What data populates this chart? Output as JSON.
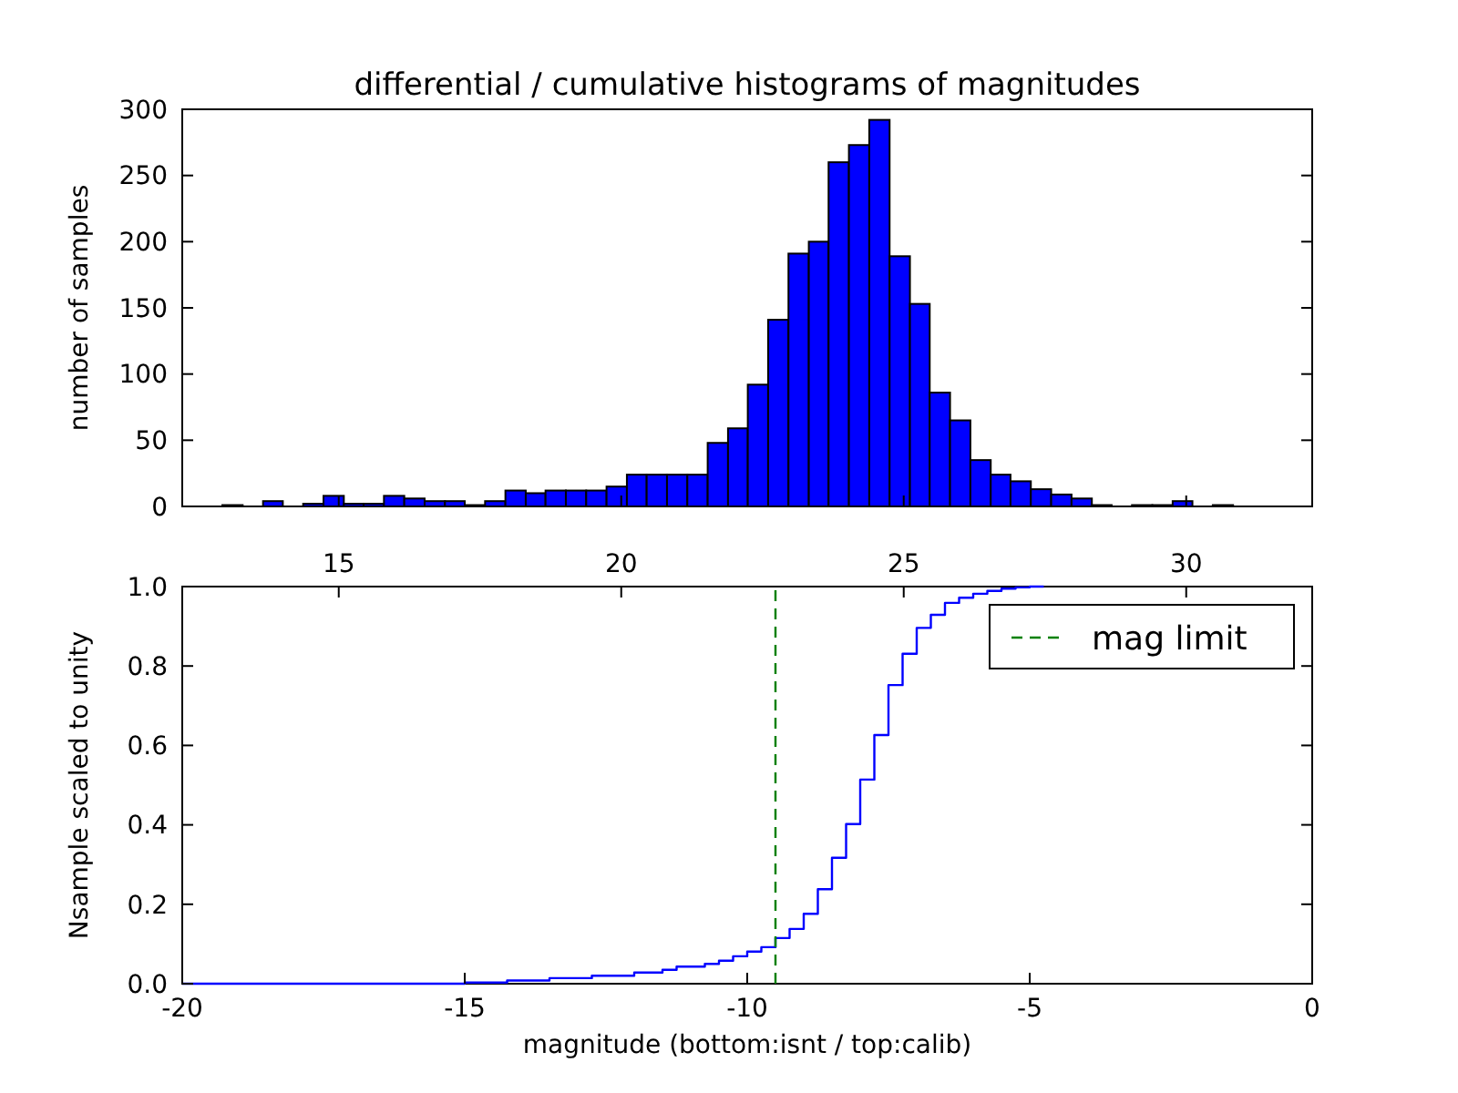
{
  "chart_data": [
    {
      "type": "histogram",
      "title": "differential / cumulative histograms of magnitudes",
      "ylabel": "number of samples",
      "color": "#0000ff",
      "bins": [
        12.94,
        13.3,
        13.66,
        14.01,
        14.37,
        14.73,
        15.09,
        15.44,
        15.8,
        16.16,
        16.52,
        16.88,
        17.23,
        17.59,
        17.95,
        18.31,
        18.66,
        19.02,
        19.38,
        19.74,
        20.1,
        20.45,
        20.81,
        21.17,
        21.53,
        21.89,
        22.24,
        22.6,
        22.96,
        23.32,
        23.67,
        24.03,
        24.39,
        24.75,
        25.11,
        25.46,
        25.82,
        26.18,
        26.54,
        26.89,
        27.25,
        27.61,
        27.97,
        28.33,
        28.68,
        29.04,
        29.4,
        29.76,
        30.11,
        30.47,
        30.83
      ],
      "values": [
        1,
        0,
        4,
        0,
        2,
        8,
        2,
        2,
        8,
        6,
        4,
        4,
        1,
        4,
        12,
        10,
        12,
        12,
        12,
        15,
        24,
        24,
        24,
        24,
        48,
        59,
        92,
        141,
        191,
        200,
        260,
        273,
        292,
        189,
        153,
        86,
        65,
        35,
        24,
        19,
        13,
        9,
        6,
        1,
        0,
        1,
        1,
        4,
        0,
        1
      ],
      "xlim": [
        12.23,
        32.23
      ],
      "xticks": [
        15,
        20,
        25,
        30
      ],
      "ylim": [
        0,
        300
      ],
      "yticks": [
        0,
        50,
        100,
        150,
        200,
        250,
        300
      ],
      "tick_labels": "y"
    },
    {
      "type": "step",
      "xlabel": "magnitude (bottom:isnt / top:calib)",
      "ylabel": "Nsample scaled to unity",
      "series": [
        {
          "color": "#0000ff",
          "x": [
            -20,
            -15,
            -14.25,
            -13.5,
            -12.75,
            -12,
            -11.5,
            -11.25,
            -10.75,
            -10.5,
            -10.25,
            -10,
            -9.75,
            -9.5,
            -9.25,
            -9,
            -8.75,
            -8.5,
            -8.25,
            -8,
            -7.75,
            -7.5,
            -7.25,
            -7,
            -6.75,
            -6.5,
            -6.25,
            -6,
            -5.75,
            -5.5,
            -5.25,
            -5,
            -4.75
          ],
          "values": [
            0,
            0.003,
            0.008,
            0.014,
            0.02,
            0.028,
            0.035,
            0.043,
            0.05,
            0.058,
            0.069,
            0.081,
            0.092,
            0.115,
            0.138,
            0.176,
            0.238,
            0.317,
            0.402,
            0.514,
            0.626,
            0.752,
            0.831,
            0.896,
            0.929,
            0.959,
            0.972,
            0.982,
            0.989,
            0.995,
            0.998,
            1.0,
            1.0
          ]
        },
        {
          "type": "line",
          "name": "mag limit",
          "color": "#008000",
          "line_style": "dashed",
          "x": [
            -9.5,
            -9.5
          ],
          "values": [
            0,
            1
          ]
        }
      ],
      "xlim": [
        -20,
        0
      ],
      "xticks": [
        -20,
        -15,
        -10,
        -5,
        0
      ],
      "ylim": [
        0,
        1
      ],
      "yticks": [
        {
          "value": 0,
          "label": "0.0"
        },
        {
          "value": 0.2,
          "label": "0.2"
        },
        {
          "value": 0.4,
          "label": "0.4"
        },
        {
          "value": 0.6,
          "label": "0.6"
        },
        {
          "value": 0.8,
          "label": "0.8"
        },
        {
          "value": 1,
          "label": "1.0"
        }
      ],
      "x2lim": [
        12.23,
        32.23
      ],
      "x2ticks": [
        15,
        20,
        25,
        30
      ],
      "legend": "top right"
    }
  ]
}
